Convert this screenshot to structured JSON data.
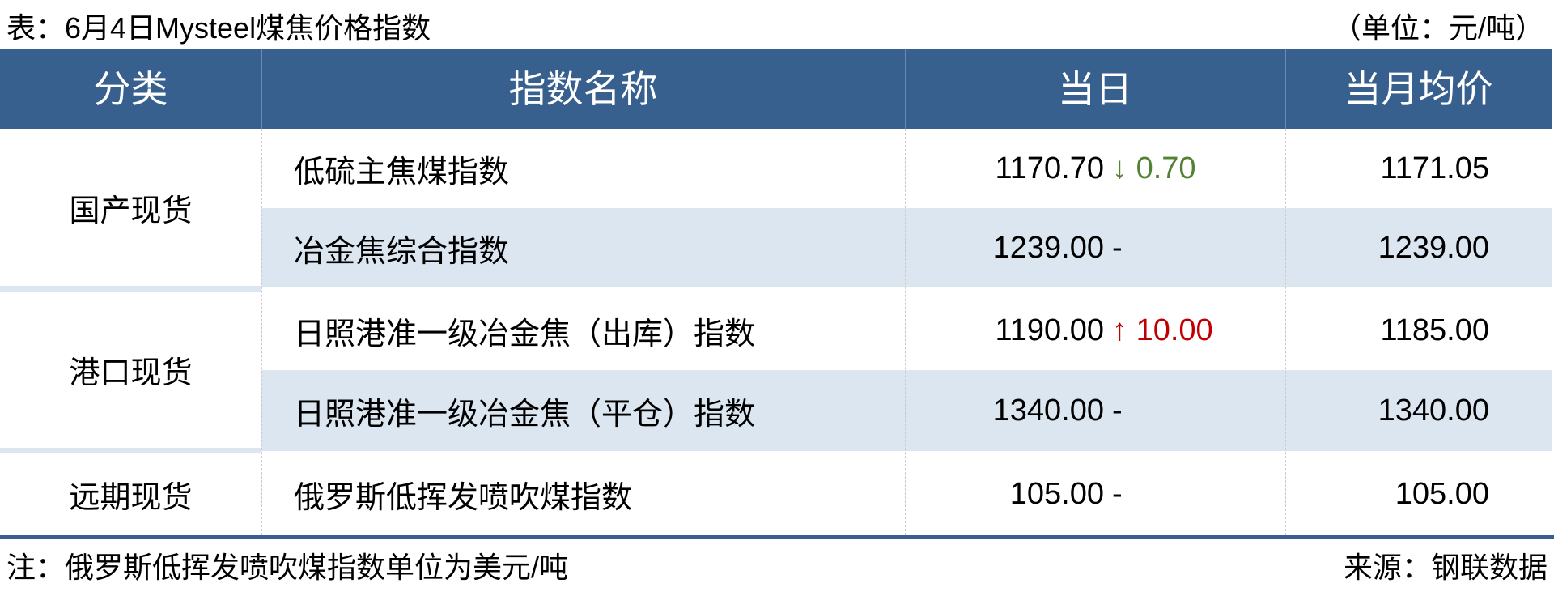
{
  "title": "表：6月4日Mysteel煤焦价格指数",
  "unit": "（单位：元/吨）",
  "headers": {
    "category": "分类",
    "name": "指数名称",
    "today": "当日",
    "month_avg": "当月均价"
  },
  "groups": [
    {
      "category": "国产现货"
    },
    {
      "category": "港口现货"
    },
    {
      "category": "远期现货"
    }
  ],
  "rows": [
    {
      "name": "低硫主焦煤指数",
      "today": "1170.70",
      "arrow": "↓",
      "change": "0.70",
      "direction": "down",
      "month_avg": "1171.05"
    },
    {
      "name": "冶金焦综合指数",
      "today": "1239.00",
      "arrow": "",
      "change": "-",
      "direction": "flat",
      "month_avg": "1239.00"
    },
    {
      "name": "日照港准一级冶金焦（出库）指数",
      "today": "1190.00",
      "arrow": "↑",
      "change": "10.00",
      "direction": "up",
      "month_avg": "1185.00"
    },
    {
      "name": "日照港准一级冶金焦（平仓）指数",
      "today": "1340.00",
      "arrow": "",
      "change": "-",
      "direction": "flat",
      "month_avg": "1340.00"
    },
    {
      "name": "俄罗斯低挥发喷吹煤指数",
      "today": "105.00",
      "arrow": "",
      "change": "-",
      "direction": "flat",
      "month_avg": "105.00"
    }
  ],
  "note": "注：俄罗斯低挥发喷吹煤指数单位为美元/吨",
  "source": "来源：钢联数据",
  "colors": {
    "header": "#37608f",
    "alt_row": "#dce6f1",
    "up": "#c00000",
    "down": "#548235"
  }
}
